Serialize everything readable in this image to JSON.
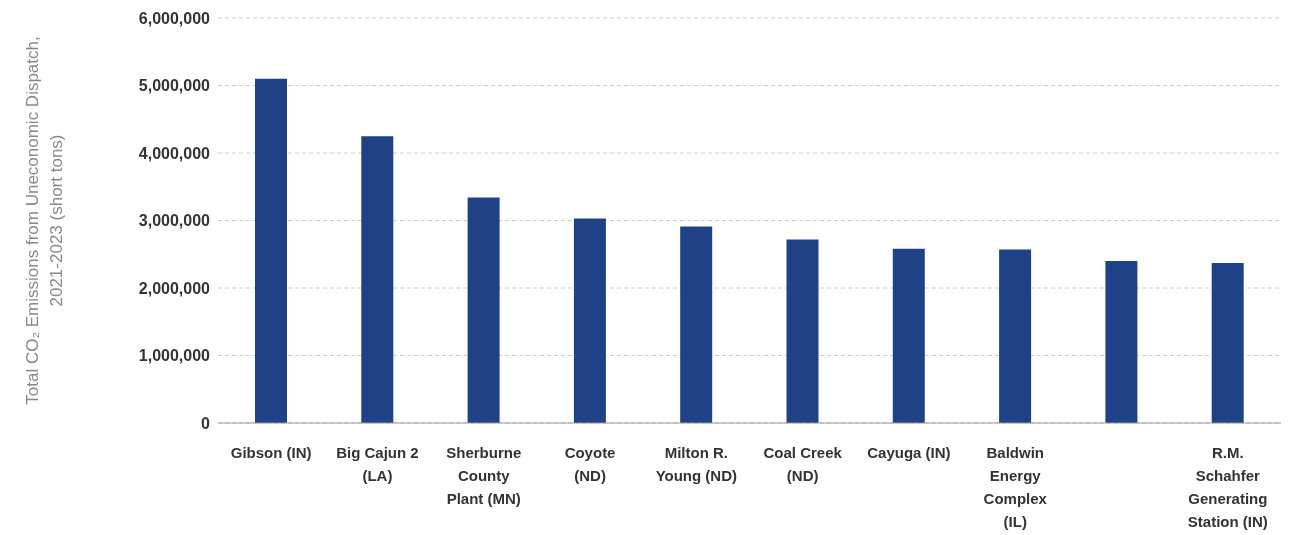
{
  "chart_data": {
    "type": "bar",
    "ylabel": "Total CO₂ Emissions from Uneconomic Dispatch, 2021-2023 (short tons)",
    "categories": [
      "Gibson (IN)",
      "Big Cajun 2 (LA)",
      "Sherburne County Plant (MN)",
      "Coyote (ND)",
      "Milton R. Young (ND)",
      "Coal Creek (ND)",
      "Cayuga (IN)",
      "Baldwin Energy Complex (IL)",
      null,
      "R.M. Schahfer Generating Station (IN)"
    ],
    "values": [
      5100000,
      4250000,
      3340000,
      3030000,
      2910000,
      2720000,
      2580000,
      2570000,
      2400000,
      2370000
    ],
    "color": "#1f4287",
    "ylim": [
      0,
      6000000
    ],
    "yticks": [
      0,
      {
        "value": 1000000,
        "label": "1,000,000"
      },
      {
        "value": 2000000,
        "label": "2,000,000"
      },
      {
        "value": 3000000,
        "label": "3,000,000"
      },
      {
        "value": 4000000,
        "label": "4,000,000"
      },
      {
        "value": 5000000,
        "label": "5,000,000"
      },
      {
        "value": 6000000,
        "label": "6,000,000"
      }
    ],
    "grid": "y"
  }
}
